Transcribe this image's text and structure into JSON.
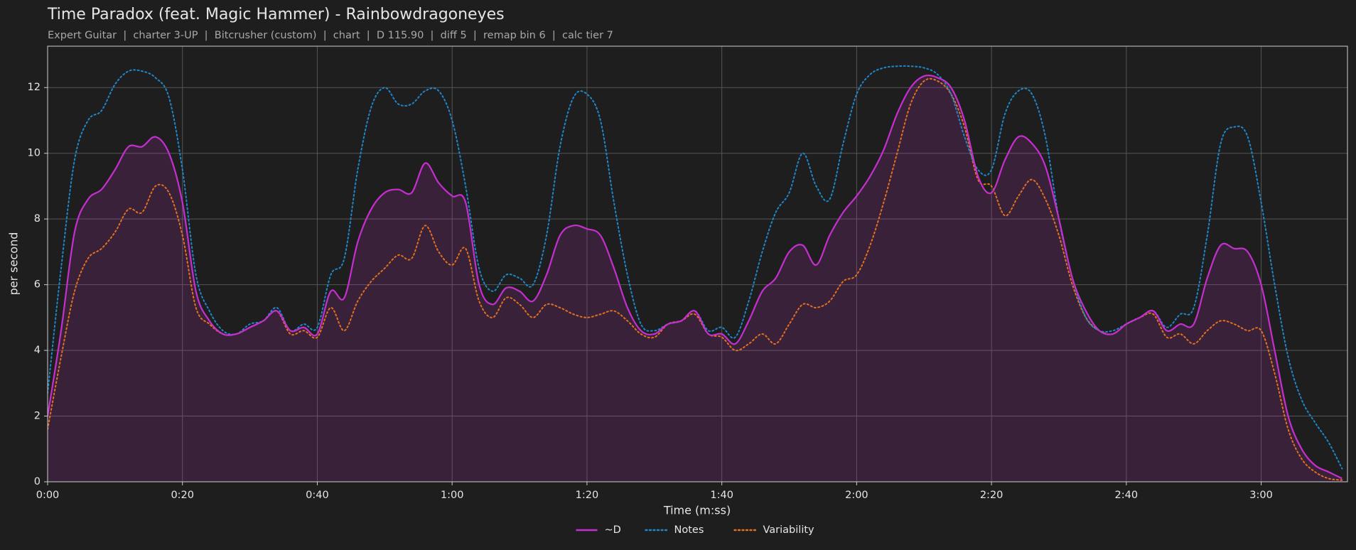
{
  "chart_data": {
    "type": "line",
    "title": "Time Paradox (feat. Magic Hammer) - Rainbowdragoneyes",
    "subtitle": "Expert Guitar  |  charter 3-UP  |  Bitcrusher (custom)  |  chart  |  D 115.90  |  diff 5  |  remap bin 6  |  calc tier 7",
    "x_label": "Time (m:ss)",
    "y_label": "per second",
    "xlim": [
      0,
      192.8
    ],
    "ylim": [
      0,
      13.26
    ],
    "xticks": [
      {
        "value": 0,
        "label": "0:00"
      },
      {
        "value": 20,
        "label": "0:20"
      },
      {
        "value": 40,
        "label": "0:40"
      },
      {
        "value": 60,
        "label": "1:00"
      },
      {
        "value": 80,
        "label": "1:20"
      },
      {
        "value": 100,
        "label": "1:40"
      },
      {
        "value": 120,
        "label": "2:00"
      },
      {
        "value": 140,
        "label": "2:20"
      },
      {
        "value": 160,
        "label": "2:40"
      },
      {
        "value": 180,
        "label": "3:00"
      }
    ],
    "yticks": [
      0,
      2,
      4,
      6,
      8,
      10,
      12
    ],
    "grid": true,
    "legend": "lower center",
    "x": [
      0,
      2,
      4,
      6,
      8,
      10,
      12,
      14,
      16,
      18,
      20,
      22,
      24,
      26,
      28,
      30,
      32,
      34,
      36,
      38,
      40,
      42,
      44,
      46,
      48,
      50,
      52,
      54,
      56,
      58,
      60,
      62,
      64,
      66,
      68,
      70,
      72,
      74,
      76,
      78,
      80,
      82,
      84,
      86,
      88,
      90,
      92,
      94,
      96,
      98,
      100,
      102,
      104,
      106,
      108,
      110,
      112,
      114,
      116,
      118,
      120,
      122,
      124,
      126,
      128,
      130,
      132,
      134,
      136,
      138,
      140,
      142,
      144,
      146,
      148,
      150,
      152,
      154,
      156,
      158,
      160,
      162,
      164,
      166,
      168,
      170,
      172,
      174,
      176,
      178,
      180,
      182,
      184,
      186,
      188,
      190,
      192
    ],
    "series": [
      {
        "name": "~D",
        "color": "#c62fcf",
        "style": "solid",
        "area": true,
        "values": [
          2.0,
          4.6,
          7.6,
          8.6,
          8.9,
          9.5,
          10.2,
          10.2,
          10.5,
          10.0,
          8.5,
          5.8,
          4.9,
          4.5,
          4.5,
          4.7,
          4.9,
          5.2,
          4.6,
          4.7,
          4.5,
          5.8,
          5.6,
          7.3,
          8.3,
          8.8,
          8.9,
          8.8,
          9.7,
          9.1,
          8.7,
          8.5,
          6.0,
          5.4,
          5.9,
          5.8,
          5.5,
          6.3,
          7.5,
          7.8,
          7.7,
          7.5,
          6.5,
          5.3,
          4.6,
          4.5,
          4.8,
          4.9,
          5.2,
          4.5,
          4.5,
          4.2,
          4.9,
          5.8,
          6.2,
          7.0,
          7.2,
          6.6,
          7.5,
          8.2,
          8.7,
          9.3,
          10.1,
          11.2,
          12.0,
          12.35,
          12.3,
          12.0,
          11.0,
          9.3,
          8.8,
          9.8,
          10.5,
          10.3,
          9.6,
          8.0,
          6.2,
          5.2,
          4.6,
          4.5,
          4.8,
          5.0,
          5.2,
          4.6,
          4.8,
          4.8,
          6.2,
          7.2,
          7.1,
          7.0,
          6.0,
          4.0,
          2.0,
          1.0,
          0.5,
          0.3,
          0.1
        ]
      },
      {
        "name": "Notes",
        "color": "#1f87c8",
        "style": "dotted",
        "values": [
          2.7,
          6.5,
          9.8,
          11.0,
          11.3,
          12.1,
          12.5,
          12.5,
          12.3,
          11.7,
          9.5,
          6.3,
          5.2,
          4.6,
          4.5,
          4.8,
          4.9,
          5.3,
          4.6,
          4.8,
          4.7,
          6.3,
          6.8,
          9.5,
          11.4,
          12.0,
          11.5,
          11.5,
          11.9,
          11.9,
          11.0,
          9.0,
          6.5,
          5.8,
          6.3,
          6.2,
          6.0,
          7.5,
          10.2,
          11.7,
          11.8,
          11.0,
          8.5,
          6.3,
          4.8,
          4.6,
          4.8,
          4.9,
          5.2,
          4.6,
          4.7,
          4.4,
          5.5,
          7.0,
          8.2,
          8.8,
          10.0,
          9.0,
          8.6,
          10.3,
          11.8,
          12.4,
          12.6,
          12.65,
          12.65,
          12.6,
          12.4,
          11.8,
          10.5,
          9.5,
          9.5,
          11.2,
          11.9,
          11.8,
          10.5,
          8.0,
          6.2,
          5.0,
          4.6,
          4.6,
          4.8,
          5.0,
          5.2,
          4.7,
          5.1,
          5.3,
          7.5,
          10.3,
          10.8,
          10.5,
          8.5,
          6.0,
          3.8,
          2.5,
          1.8,
          1.2,
          0.4
        ]
      },
      {
        "name": "Variability",
        "color": "#e2701f",
        "style": "dotted",
        "values": [
          1.6,
          3.8,
          5.8,
          6.8,
          7.1,
          7.6,
          8.3,
          8.2,
          9.0,
          8.8,
          7.5,
          5.3,
          4.8,
          4.5,
          4.5,
          4.7,
          4.9,
          5.2,
          4.5,
          4.6,
          4.4,
          5.3,
          4.6,
          5.5,
          6.1,
          6.5,
          6.9,
          6.8,
          7.8,
          7.0,
          6.6,
          7.1,
          5.5,
          5.0,
          5.6,
          5.4,
          5.0,
          5.4,
          5.3,
          5.1,
          5.0,
          5.1,
          5.2,
          4.9,
          4.5,
          4.4,
          4.8,
          4.9,
          5.1,
          4.5,
          4.4,
          4.0,
          4.2,
          4.5,
          4.2,
          4.8,
          5.4,
          5.3,
          5.5,
          6.1,
          6.3,
          7.2,
          8.5,
          10.0,
          11.5,
          12.2,
          12.2,
          11.8,
          10.8,
          9.2,
          9.0,
          8.1,
          8.7,
          9.2,
          8.6,
          7.5,
          6.0,
          5.0,
          4.6,
          4.5,
          4.8,
          5.0,
          5.1,
          4.4,
          4.5,
          4.2,
          4.6,
          4.9,
          4.8,
          4.6,
          4.6,
          3.3,
          1.6,
          0.7,
          0.3,
          0.1,
          0.05
        ]
      }
    ]
  }
}
